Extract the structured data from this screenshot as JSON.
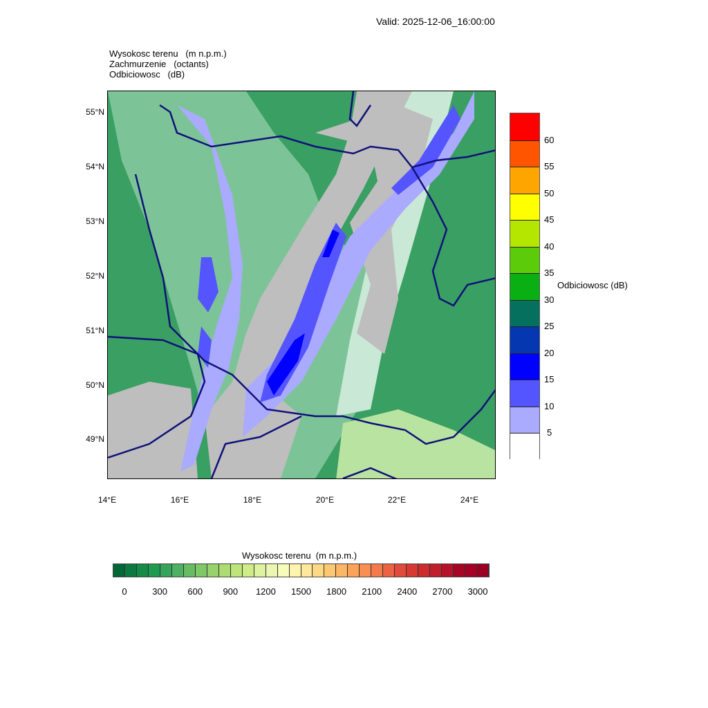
{
  "header": {
    "valid": "Valid: 2025-12-06_16:00:00"
  },
  "titles": [
    "Wysokosc terenu   (m n.p.m.)",
    "Zachmurzenie   (octants)",
    "Odbiciowosc   (dB)"
  ],
  "map": {
    "lat_labels": [
      "55°N",
      "54°N",
      "53°N",
      "52°N",
      "51°N",
      "50°N",
      "49°N"
    ],
    "lon_labels": [
      "14°E",
      "16°E",
      "18°E",
      "20°E",
      "22°E",
      "24°E"
    ],
    "colors": {
      "border": "#10107a",
      "gray": "#bebebe",
      "low_green": "#2e9b5c"
    }
  },
  "reflectivity_bar": {
    "title": "Odbiciowosc  (dB)",
    "labels": [
      "60",
      "55",
      "50",
      "45",
      "40",
      "35",
      "30",
      "25",
      "20",
      "15",
      "10",
      "5"
    ],
    "colors": [
      "#ff0000",
      "#ff5500",
      "#ffa500",
      "#ffff00",
      "#b4e600",
      "#5ccb0a",
      "#0aaf14",
      "#06705f",
      "#0538b0",
      "#0000ff",
      "#5555ff",
      "#aaaaff",
      "#ffffff"
    ]
  },
  "terrain_bar": {
    "title": "Wysokosc terenu  (m n.p.m.)",
    "labels": [
      "0",
      "300",
      "600",
      "900",
      "1200",
      "1500",
      "1800",
      "2100",
      "2400",
      "2700",
      "3000"
    ],
    "colors": [
      "#006837",
      "#0b7a40",
      "#168b48",
      "#1f9a51",
      "#34a55a",
      "#4eb062",
      "#66bd63",
      "#7fc767",
      "#98d26d",
      "#acdc72",
      "#bde57b",
      "#d0ec86",
      "#def3a0",
      "#ebf7b0",
      "#f7fcba",
      "#fff4ad",
      "#fee89a",
      "#fed985",
      "#fec872",
      "#fdb665",
      "#fca35a",
      "#f98f52",
      "#f57a4b",
      "#ec6343",
      "#e24b3b",
      "#d83a33",
      "#cd2c2e",
      "#c21f2c",
      "#b5132a",
      "#a50626",
      "#a50026",
      "#9a0022"
    ]
  }
}
